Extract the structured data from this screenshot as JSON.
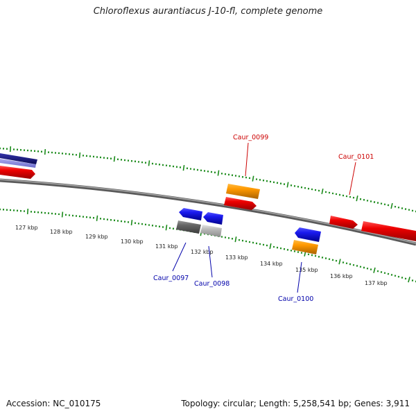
{
  "title": "Chloroflexus aurantiacus J-10-fl, complete genome",
  "footer": {
    "accession": "Accession: NC_010175",
    "summary": "Topology: circular; Length: 5,258,541 bp; Genes: 3,911"
  },
  "colors": {
    "backbone": "#808080",
    "ticks": "#1a8a1a",
    "forward_label": "#cc0000",
    "reverse_label": "#0000aa"
  },
  "scale_labels": [
    "127 kbp",
    "128 kbp",
    "129 kbp",
    "130 kbp",
    "131 kbp",
    "132 kbp",
    "133 kbp",
    "134 kbp",
    "135 kbp",
    "136 kbp",
    "137 kbp"
  ],
  "gene_labels": [
    {
      "text": "Caur_0097",
      "strand": "reverse"
    },
    {
      "text": "Caur_0098",
      "strand": "reverse"
    },
    {
      "text": "Caur_0099",
      "strand": "forward"
    },
    {
      "text": "Caur_0100",
      "strand": "reverse"
    },
    {
      "text": "Caur_0101",
      "strand": "forward"
    }
  ],
  "feature_colors": {
    "red": "#ee0000",
    "orange": "#ff9900",
    "blue": "#1a1aee",
    "dark_gray": "#666666",
    "light_gray": "#bbbbbb",
    "navy": "#111177",
    "lavender": "#8888dd"
  }
}
